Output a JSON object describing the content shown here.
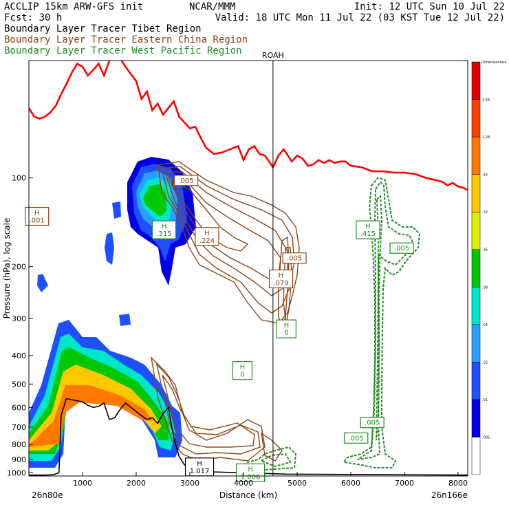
{
  "header": {
    "left_line1": "ACCLIP 15km ARW-GFS init",
    "left_line2": "Fcst:   30 h",
    "center_line1": "NCAR/MMM",
    "right_line1": "Init: 12 UTC Sun 10 Jul 22",
    "right_line2": "Valid: 18 UTC Mon 11 Jul 22 (03 KST Tue 12 Jul 22)",
    "legend": [
      {
        "text": "Boundary Layer Tracer  Tibet Region",
        "color": "#000000"
      },
      {
        "text": "Boundary Layer Tracer  Eastern China Region",
        "color": "#8b4513"
      },
      {
        "text": "Boundary Layer Tracer  West Pacific Region",
        "color": "#228b22"
      }
    ]
  },
  "chart_data": {
    "type": "cross-section",
    "xlabel": "Distance (km)",
    "ylabel": "Pressure (hPa), log scale",
    "x_ticks": [
      "1000",
      "2000",
      "3000",
      "4000",
      "5000",
      "6000",
      "7000",
      "8000"
    ],
    "x_tick_values": [
      1000,
      2000,
      3000,
      4000,
      5000,
      6000,
      7000,
      8000
    ],
    "xlim": [
      0,
      8180
    ],
    "y_ticks": [
      "100",
      "200",
      "300",
      "400",
      "500",
      "600",
      "700",
      "800",
      "900",
      "1000"
    ],
    "y_tick_values": [
      100,
      200,
      300,
      400,
      500,
      600,
      700,
      800,
      900,
      1000
    ],
    "ylim": [
      40,
      1025
    ],
    "y_scale": "log",
    "x_start_label": "26n80e",
    "x_end_label": "26n166e",
    "marker": {
      "label": "ROAH",
      "x": 4550
    },
    "colorbar": {
      "title": "Dimensionless",
      "levels": [
        ".005",
        ".01",
        ".02",
        ".04",
        ".08",
        ".16",
        ".32",
        ".64",
        "1.28",
        "2.56"
      ],
      "colors": [
        "#ffffff",
        "#0000e6",
        "#1e50ff",
        "#28a0ff",
        "#00e6c8",
        "#00c800",
        "#dcf000",
        "#ffc800",
        "#ff7800",
        "#ff3c00",
        "#dc0000"
      ]
    },
    "tropopause_line": {
      "color": "#ff0000",
      "x": [
        0,
        100,
        200,
        300,
        400,
        500,
        600,
        700,
        800,
        900,
        1000,
        1100,
        1200,
        1300,
        1400,
        1500,
        1650,
        1800,
        2000,
        2100,
        2200,
        2300,
        2400,
        2500,
        2700,
        2800,
        3000,
        3100,
        3200,
        3300,
        3450,
        3600,
        3750,
        3900,
        4000,
        4100,
        4200,
        4300,
        4400,
        4550,
        4650,
        4750,
        4900,
        5000,
        5100,
        5200,
        5300,
        5400,
        5500,
        5600,
        5700,
        5800,
        5900,
        6000,
        6200,
        6400,
        6600,
        6800,
        7000,
        7200,
        7400,
        7600,
        7700,
        7800,
        7900,
        8000,
        8100,
        8180
      ],
      "p": [
        58,
        62,
        63,
        62,
        60,
        57,
        52,
        48,
        44,
        41,
        42,
        45,
        43,
        41,
        45,
        40,
        38,
        42,
        47,
        54,
        51,
        59,
        56,
        61,
        55,
        62,
        68,
        67,
        73,
        79,
        83,
        82,
        80,
        78,
        87,
        80,
        78,
        83,
        84,
        92,
        84,
        80,
        88,
        84,
        86,
        91,
        90,
        87,
        89,
        87,
        89,
        88,
        88,
        91,
        92,
        95,
        95,
        96,
        96,
        97,
        100,
        102,
        103,
        106,
        104,
        107,
        108,
        110
      ]
    },
    "terrain_line": {
      "color": "#000000",
      "x": [
        0,
        150,
        300,
        450,
        560,
        600,
        700,
        800,
        900,
        1000,
        1100,
        1200,
        1300,
        1400,
        1500,
        1600,
        1700,
        1800,
        1900,
        2000,
        2100,
        2200,
        2300,
        2400,
        2500,
        2600,
        2700,
        2800,
        2900,
        3000,
        3100,
        3200,
        4000,
        4800,
        8180
      ],
      "p": [
        1018,
        1018,
        1018,
        1015,
        1000,
        640,
        560,
        565,
        570,
        575,
        590,
        600,
        595,
        580,
        660,
        650,
        610,
        580,
        600,
        620,
        640,
        660,
        650,
        680,
        630,
        600,
        760,
        880,
        940,
        960,
        985,
        990,
        1000,
        1010,
        1018
      ]
    },
    "annotations": [
      {
        "text": "H",
        "value": ".001",
        "x": 150,
        "p": 135,
        "color": "#8b4513"
      },
      {
        "text": "H",
        "value": ".315",
        "x": 2520,
        "p": 150,
        "color": "#228b22"
      },
      {
        "text": "H",
        "value": ".224",
        "x": 3320,
        "p": 158,
        "color": "#8b4513"
      },
      {
        "text": "",
        "value": ".005",
        "x": 2930,
        "p": 102,
        "color": "#8b4513"
      },
      {
        "text": "",
        "value": ".005",
        "x": 4950,
        "p": 187,
        "color": "#8b4513"
      },
      {
        "text": "H",
        "value": ".079",
        "x": 4700,
        "p": 220,
        "color": "#8b4513"
      },
      {
        "text": "H",
        "value": "0",
        "x": 4800,
        "p": 325,
        "color": "#228b22"
      },
      {
        "text": "H",
        "value": "0",
        "x": 3980,
        "p": 450,
        "color": "#228b22"
      },
      {
        "text": "H",
        "value": ".415",
        "x": 6320,
        "p": 150,
        "color": "#228b22"
      },
      {
        "text": "",
        "value": ".005",
        "x": 6950,
        "p": 173,
        "color": "#228b22"
      },
      {
        "text": "",
        "value": ".005",
        "x": 6400,
        "p": 675,
        "color": "#228b22"
      },
      {
        "text": "",
        "value": ".005",
        "x": 6100,
        "p": 762,
        "color": "#228b22"
      },
      {
        "text": "H",
        "value": "1.017",
        "x": 3180,
        "p": 955,
        "color": "#000000"
      },
      {
        "text": "H",
        "value": "1.006",
        "x": 4130,
        "p": 1000,
        "color": "#228b22"
      }
    ]
  }
}
